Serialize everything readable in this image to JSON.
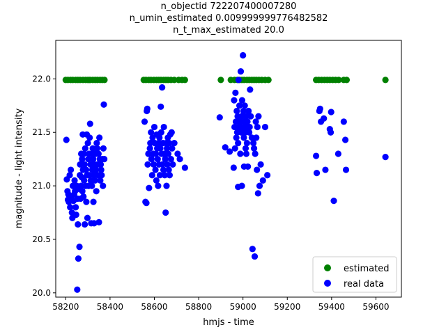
{
  "chart_data": {
    "type": "scatter",
    "title_lines": [
      "n_objectid 722207400007280",
      "n_umin_estimated 0.009999999776482582",
      "n_t_max_estimated 20.0"
    ],
    "xlabel": "hmjs - time",
    "ylabel": "magnitude - light intensity",
    "xlim": [
      58155,
      59715
    ],
    "ylim": [
      19.96,
      22.36
    ],
    "xticks": [
      58200,
      58400,
      58600,
      58800,
      59000,
      59200,
      59400,
      59600
    ],
    "yticks": [
      20.0,
      20.5,
      21.0,
      21.5,
      22.0
    ],
    "ytick_labels": [
      "20.0",
      "20.5",
      "21.0",
      "21.5",
      "22.0"
    ],
    "grid": false,
    "legend_position": "lower-right",
    "series": [
      {
        "name": "estimated",
        "color": "#008000",
        "points": [
          [
            58200,
            21.99
          ],
          [
            58210,
            21.99
          ],
          [
            58222,
            21.99
          ],
          [
            58232,
            21.99
          ],
          [
            58245,
            21.99
          ],
          [
            58255,
            21.99
          ],
          [
            58265,
            21.99
          ],
          [
            58278,
            21.99
          ],
          [
            58290,
            21.99
          ],
          [
            58300,
            21.99
          ],
          [
            58310,
            21.99
          ],
          [
            58322,
            21.99
          ],
          [
            58333,
            21.99
          ],
          [
            58343,
            21.99
          ],
          [
            58355,
            21.99
          ],
          [
            58365,
            21.99
          ],
          [
            58375,
            21.99
          ],
          [
            58552,
            21.99
          ],
          [
            58562,
            21.99
          ],
          [
            58575,
            21.99
          ],
          [
            58585,
            21.99
          ],
          [
            58598,
            21.99
          ],
          [
            58610,
            21.99
          ],
          [
            58620,
            21.99
          ],
          [
            58630,
            21.99
          ],
          [
            58642,
            21.99
          ],
          [
            58652,
            21.99
          ],
          [
            58662,
            21.99
          ],
          [
            58675,
            21.99
          ],
          [
            58690,
            21.99
          ],
          [
            58710,
            21.99
          ],
          [
            58725,
            21.99
          ],
          [
            58738,
            21.99
          ],
          [
            58900,
            21.99
          ],
          [
            58945,
            21.99
          ],
          [
            58962,
            21.99
          ],
          [
            58975,
            21.99
          ],
          [
            58985,
            21.99
          ],
          [
            58995,
            21.99
          ],
          [
            59005,
            21.99
          ],
          [
            59018,
            21.99
          ],
          [
            59028,
            21.99
          ],
          [
            59040,
            21.99
          ],
          [
            59050,
            21.99
          ],
          [
            59060,
            21.99
          ],
          [
            59072,
            21.99
          ],
          [
            59085,
            21.99
          ],
          [
            59100,
            21.99
          ],
          [
            59115,
            21.99
          ],
          [
            59330,
            21.99
          ],
          [
            59342,
            21.99
          ],
          [
            59355,
            21.99
          ],
          [
            59368,
            21.99
          ],
          [
            59380,
            21.99
          ],
          [
            59392,
            21.99
          ],
          [
            59405,
            21.99
          ],
          [
            59418,
            21.99
          ],
          [
            59432,
            21.99
          ],
          [
            59455,
            21.99
          ],
          [
            59468,
            21.99
          ],
          [
            59643,
            21.99
          ]
        ]
      },
      {
        "name": "real data",
        "color": "#0000ff",
        "points": [
          [
            58203,
            21.43
          ],
          [
            58205,
            21.06
          ],
          [
            58208,
            20.95
          ],
          [
            58210,
            20.87
          ],
          [
            58212,
            20.92
          ],
          [
            58214,
            20.85
          ],
          [
            58218,
            21.1
          ],
          [
            58220,
            20.8
          ],
          [
            58223,
            21.15
          ],
          [
            58225,
            20.9
          ],
          [
            58228,
            20.75
          ],
          [
            58230,
            20.7
          ],
          [
            58232,
            21.0
          ],
          [
            58235,
            20.86
          ],
          [
            58238,
            20.92
          ],
          [
            58240,
            21.05
          ],
          [
            58242,
            20.95
          ],
          [
            58245,
            20.8
          ],
          [
            58247,
            20.73
          ],
          [
            58250,
            21.0
          ],
          [
            58252,
            20.03
          ],
          [
            58253,
            20.88
          ],
          [
            58255,
            20.64
          ],
          [
            58257,
            20.32
          ],
          [
            58260,
            20.97
          ],
          [
            58262,
            20.43
          ],
          [
            58264,
            21.1
          ],
          [
            58265,
            21.2
          ],
          [
            58267,
            20.88
          ],
          [
            58269,
            21.0
          ],
          [
            58270,
            21.3
          ],
          [
            58272,
            21.08
          ],
          [
            58274,
            21.25
          ],
          [
            58275,
            20.95
          ],
          [
            58277,
            21.48
          ],
          [
            58278,
            21.15
          ],
          [
            58280,
            20.9
          ],
          [
            58282,
            21.3
          ],
          [
            58283,
            21.05
          ],
          [
            58285,
            21.2
          ],
          [
            58286,
            20.64
          ],
          [
            58288,
            21.35
          ],
          [
            58290,
            21.0
          ],
          [
            58292,
            21.15
          ],
          [
            58293,
            20.85
          ],
          [
            58295,
            21.48
          ],
          [
            58296,
            21.1
          ],
          [
            58298,
            20.7
          ],
          [
            58300,
            21.4
          ],
          [
            58302,
            21.25
          ],
          [
            58303,
            21.0
          ],
          [
            58305,
            21.3
          ],
          [
            58306,
            21.1
          ],
          [
            58308,
            21.45
          ],
          [
            58310,
            21.58
          ],
          [
            58312,
            21.2
          ],
          [
            58313,
            21.05
          ],
          [
            58315,
            20.65
          ],
          [
            58317,
            21.3
          ],
          [
            58318,
            21.0
          ],
          [
            58320,
            21.15
          ],
          [
            58322,
            21.35
          ],
          [
            58324,
            21.25
          ],
          [
            58325,
            20.85
          ],
          [
            58327,
            21.1
          ],
          [
            58328,
            20.65
          ],
          [
            58330,
            21.2
          ],
          [
            58332,
            21.05
          ],
          [
            58334,
            21.3
          ],
          [
            58336,
            21.15
          ],
          [
            58338,
            20.95
          ],
          [
            58340,
            21.4
          ],
          [
            58342,
            21.35
          ],
          [
            58344,
            21.2
          ],
          [
            58346,
            21.1
          ],
          [
            58348,
            21.3
          ],
          [
            58350,
            20.66
          ],
          [
            58352,
            21.45
          ],
          [
            58354,
            21.25
          ],
          [
            58356,
            21.05
          ],
          [
            58358,
            21.2
          ],
          [
            58360,
            21.15
          ],
          [
            58362,
            21.1
          ],
          [
            58365,
            21.25
          ],
          [
            58368,
            21.0
          ],
          [
            58370,
            21.35
          ],
          [
            58372,
            21.76
          ],
          [
            58374,
            21.25
          ],
          [
            58556,
            21.6
          ],
          [
            58560,
            20.85
          ],
          [
            58564,
            20.84
          ],
          [
            58566,
            21.7
          ],
          [
            58568,
            21.72
          ],
          [
            58570,
            21.2
          ],
          [
            58573,
            21.3
          ],
          [
            58576,
            20.98
          ],
          [
            58580,
            21.35
          ],
          [
            58582,
            21.4
          ],
          [
            58585,
            21.5
          ],
          [
            58587,
            21.25
          ],
          [
            58590,
            21.1
          ],
          [
            58592,
            21.45
          ],
          [
            58595,
            21.3
          ],
          [
            58597,
            21.2
          ],
          [
            58600,
            21.55
          ],
          [
            58602,
            21.4
          ],
          [
            58605,
            21.15
          ],
          [
            58607,
            21.3
          ],
          [
            58609,
            21.05
          ],
          [
            58611,
            21.48
          ],
          [
            58613,
            21.35
          ],
          [
            58615,
            21.25
          ],
          [
            58617,
            21.0
          ],
          [
            58619,
            21.4
          ],
          [
            58621,
            21.2
          ],
          [
            58623,
            21.45
          ],
          [
            58625,
            21.1
          ],
          [
            58627,
            21.35
          ],
          [
            58629,
            21.74
          ],
          [
            58631,
            21.5
          ],
          [
            58633,
            21.3
          ],
          [
            58635,
            21.92
          ],
          [
            58637,
            21.2
          ],
          [
            58639,
            21.4
          ],
          [
            58641,
            21.15
          ],
          [
            58643,
            21.55
          ],
          [
            58645,
            21.3
          ],
          [
            58647,
            21.1
          ],
          [
            58649,
            21.25
          ],
          [
            58651,
            20.75
          ],
          [
            58653,
            21.4
          ],
          [
            58655,
            21.0
          ],
          [
            58657,
            21.35
          ],
          [
            58659,
            21.2
          ],
          [
            58661,
            21.45
          ],
          [
            58663,
            21.3
          ],
          [
            58665,
            21.15
          ],
          [
            58667,
            21.4
          ],
          [
            58669,
            21.1
          ],
          [
            58672,
            21.48
          ],
          [
            58675,
            21.25
          ],
          [
            58678,
            21.5
          ],
          [
            58680,
            21.35
          ],
          [
            58683,
            21.2
          ],
          [
            58690,
            21.4
          ],
          [
            58705,
            21.3
          ],
          [
            58715,
            21.25
          ],
          [
            58738,
            21.17
          ],
          [
            58895,
            21.64
          ],
          [
            58920,
            21.36
          ],
          [
            58960,
            21.8
          ],
          [
            58962,
            21.55
          ],
          [
            58964,
            21.35
          ],
          [
            58966,
            21.87
          ],
          [
            58968,
            21.6
          ],
          [
            58970,
            21.45
          ],
          [
            58972,
            21.7
          ],
          [
            58974,
            21.5
          ],
          [
            58976,
            21.65
          ],
          [
            58978,
            21.4
          ],
          [
            58980,
            21.99
          ],
          [
            58982,
            21.55
          ],
          [
            58984,
            21.75
          ],
          [
            58986,
            21.6
          ],
          [
            58988,
            21.3
          ],
          [
            58990,
            22.07
          ],
          [
            58992,
            21.5
          ],
          [
            58994,
            21.65
          ],
          [
            58996,
            21.8
          ],
          [
            58998,
            21.55
          ],
          [
            59000,
            22.22
          ],
          [
            59002,
            21.7
          ],
          [
            59004,
            21.45
          ],
          [
            59006,
            21.6
          ],
          [
            59008,
            21.75
          ],
          [
            59010,
            21.5
          ],
          [
            59012,
            21.35
          ],
          [
            59014,
            21.65
          ],
          [
            59016,
            21.55
          ],
          [
            59018,
            21.4
          ],
          [
            59020,
            21.6
          ],
          [
            59022,
            21.18
          ],
          [
            59025,
            21.7
          ],
          [
            59028,
            21.5
          ],
          [
            59030,
            21.55
          ],
          [
            59032,
            21.9
          ],
          [
            59035,
            21.65
          ],
          [
            59040,
            21.45
          ],
          [
            59043,
            20.41
          ],
          [
            59047,
            21.4
          ],
          [
            59050,
            21.35
          ],
          [
            59053,
            20.34
          ],
          [
            59055,
            21.3
          ],
          [
            59058,
            21.6
          ],
          [
            59060,
            21.45
          ],
          [
            59063,
            21.15
          ],
          [
            59065,
            21.55
          ],
          [
            59068,
            20.93
          ],
          [
            59070,
            21.65
          ],
          [
            59075,
            21.0
          ],
          [
            59080,
            21.2
          ],
          [
            59090,
            21.05
          ],
          [
            59100,
            21.55
          ],
          [
            59110,
            21.1
          ],
          [
            58978,
            20.99
          ],
          [
            58995,
            21.0
          ],
          [
            59015,
            21.3
          ],
          [
            59005,
            21.18
          ],
          [
            58940,
            21.32
          ],
          [
            58958,
            21.17
          ],
          [
            59330,
            21.28
          ],
          [
            59333,
            21.12
          ],
          [
            59345,
            21.7
          ],
          [
            59348,
            21.72
          ],
          [
            59352,
            21.6
          ],
          [
            59365,
            21.63
          ],
          [
            59372,
            21.15
          ],
          [
            59392,
            21.53
          ],
          [
            59396,
            21.5
          ],
          [
            59398,
            21.69
          ],
          [
            59410,
            20.86
          ],
          [
            59430,
            21.3
          ],
          [
            59455,
            21.6
          ],
          [
            59462,
            21.43
          ],
          [
            59465,
            21.15
          ],
          [
            59643,
            21.27
          ]
        ]
      }
    ]
  }
}
